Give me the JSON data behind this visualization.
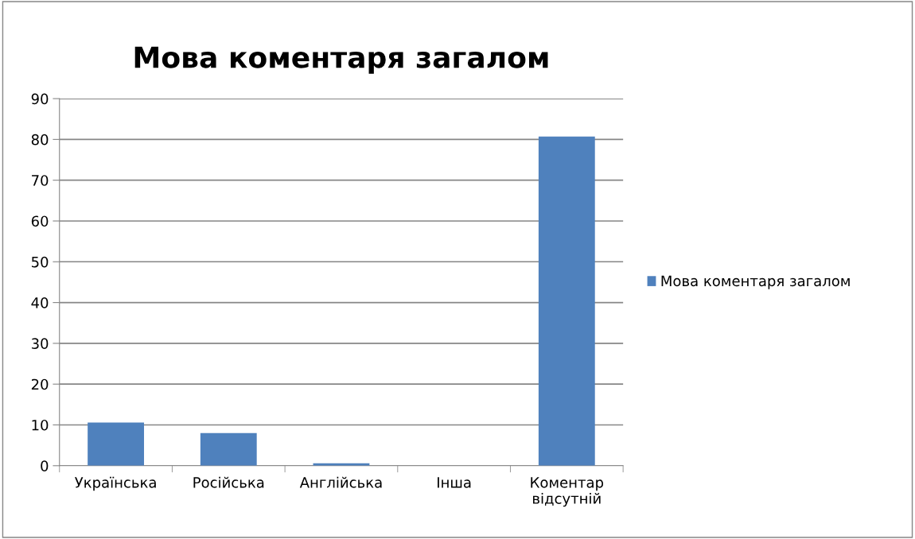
{
  "chart_data": {
    "type": "bar",
    "title": "Мова коментаря загалом",
    "categories": [
      "Українська",
      "Російська",
      "Англійська",
      "Інша",
      "Коментар\nвідсутній"
    ],
    "series": [
      {
        "name": "Мова коментаря загалом",
        "color": "#4f81bd",
        "values": [
          10.6,
          8.0,
          0.6,
          0,
          80.7
        ]
      }
    ],
    "ylim": [
      0,
      90
    ],
    "yticks": [
      0,
      10,
      20,
      30,
      40,
      50,
      60,
      70,
      80,
      90
    ],
    "grid": "y",
    "legend": "right"
  }
}
